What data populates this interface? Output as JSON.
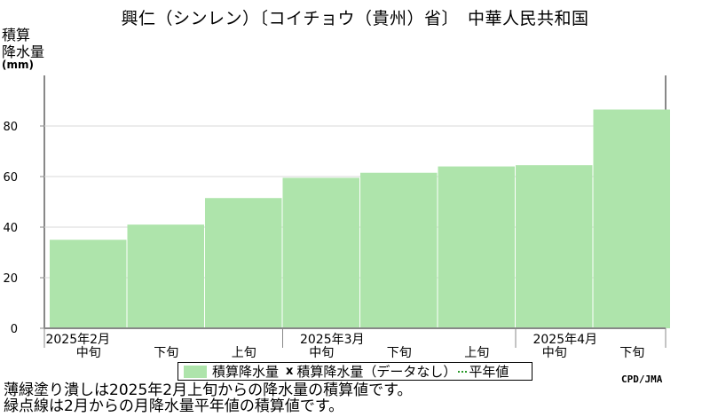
{
  "title": "興仁（シンレン）〔コイチョウ（貴州）省〕　中華人民共和国",
  "y_axis": {
    "label_line1": "積算",
    "label_line2": "降水量",
    "unit": "(mm)"
  },
  "legend": {
    "bar_label": "積算降水量",
    "marker_label": "積算降水量（データなし）",
    "normal_label": "平年値",
    "marker_symbol": "x"
  },
  "credit": "CPD/JMA",
  "notes": [
    "薄緑塗り潰しは2025年2月上旬からの降水量の積算値です。",
    "緑点線は2月からの月降水量平年値の積算値です。"
  ],
  "colors": {
    "bar": "#aee4ab",
    "grid": "#d8d8d8",
    "axis": "#888888"
  },
  "chart_data": {
    "type": "area",
    "categories": [
      "中旬",
      "下旬",
      "上旬",
      "中旬",
      "下旬",
      "上旬",
      "中旬",
      "下旬"
    ],
    "month_labels": [
      {
        "label": "2025年2月",
        "index": 0
      },
      {
        "label": "2025年3月",
        "index": 3
      },
      {
        "label": "2025年4月",
        "index": 6
      }
    ],
    "values": [
      35,
      41,
      51.5,
      59.5,
      61.5,
      64,
      64.5,
      86.5
    ],
    "ylim": [
      0,
      100
    ],
    "yticks": [
      0,
      20,
      40,
      60,
      80
    ],
    "grid": true
  }
}
